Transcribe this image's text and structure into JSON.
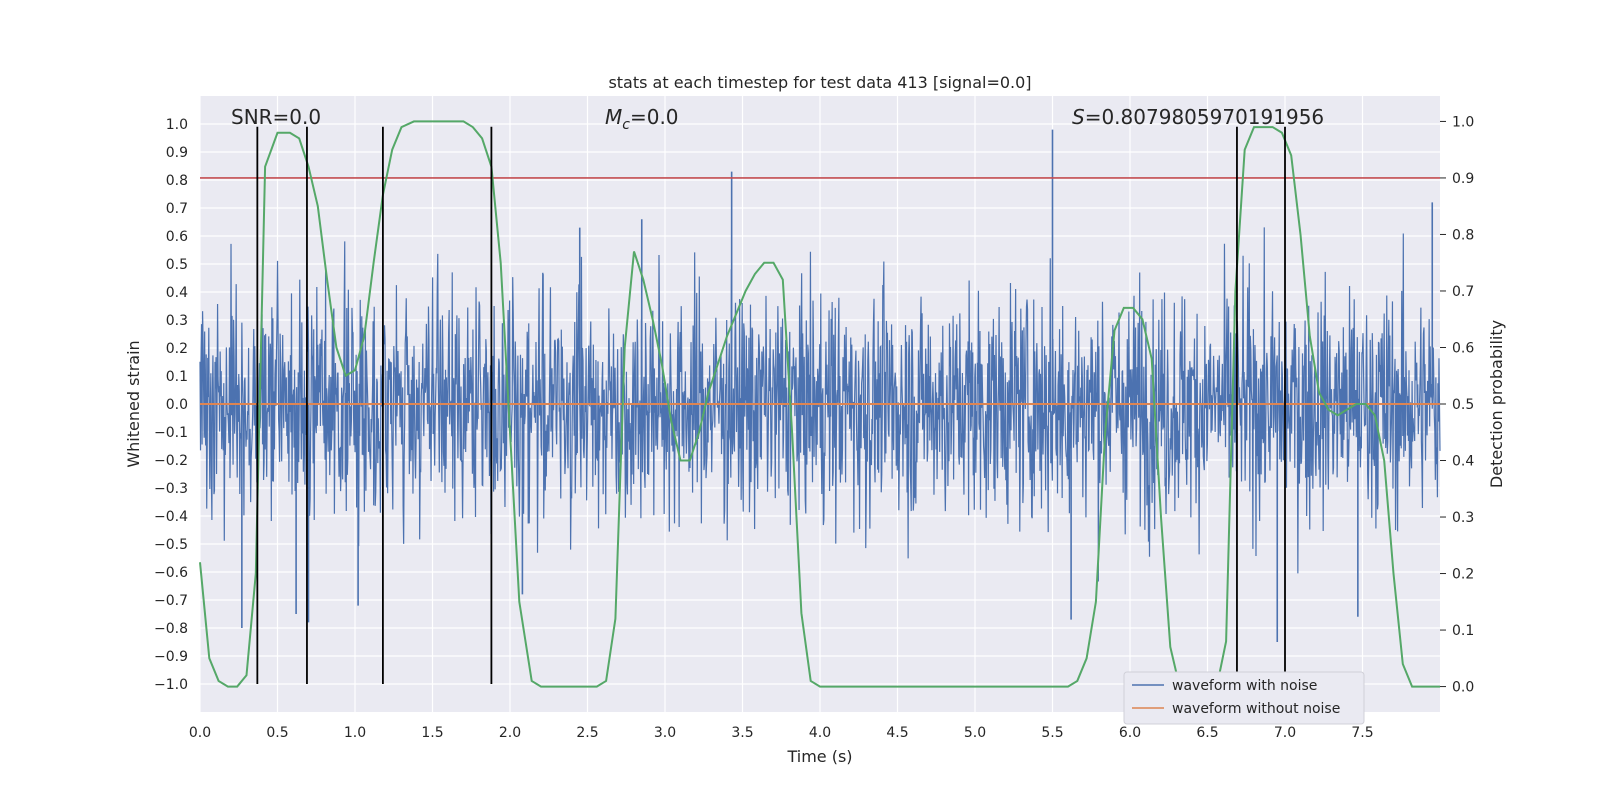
{
  "chart_data": {
    "type": "line",
    "title": "stats at each timestep for test data 413 [signal=0.0]",
    "xlabel": "Time (s)",
    "ylabel": "Whitened strain",
    "y2label": "Detection probability",
    "xlim": [
      0.0,
      8.0
    ],
    "ylim": [
      -1.1,
      1.1
    ],
    "y2lim": [
      -0.045,
      1.045
    ],
    "xticks": [
      0.0,
      0.5,
      1.0,
      1.5,
      2.0,
      2.5,
      3.0,
      3.5,
      4.0,
      4.5,
      5.0,
      5.5,
      6.0,
      6.5,
      7.0,
      7.5
    ],
    "yticks": [
      -1.0,
      -0.9,
      -0.8,
      -0.7,
      -0.6,
      -0.5,
      -0.4,
      -0.3,
      -0.2,
      -0.1,
      0.0,
      0.1,
      0.2,
      0.3,
      0.4,
      0.5,
      0.6,
      0.7,
      0.8,
      0.9,
      1.0
    ],
    "y2ticks": [
      0.0,
      0.1,
      0.2,
      0.3,
      0.4,
      0.5,
      0.6,
      0.7,
      0.8,
      0.9,
      1.0
    ],
    "grid": true,
    "legend_position": "bottom-right",
    "annotations": {
      "snr": "SNR=0.0",
      "mc_symbol": "M",
      "mc_subscript": "c",
      "mc_value": "=0.0",
      "s_symbol": "S",
      "s_value": "=0.8079805970191956"
    },
    "threshold_y2": 0.9,
    "vertical_lines_x": [
      0.37,
      0.69,
      1.18,
      1.88,
      6.69,
      7.0
    ],
    "vertical_lines_ylim": [
      -1.0,
      0.99
    ],
    "noise_series": {
      "name": "waveform with noise",
      "color": "#4c72b0",
      "spikes": [
        {
          "x": 0.27,
          "y": -0.8
        },
        {
          "x": 0.62,
          "y": -0.75
        },
        {
          "x": 0.7,
          "y": -0.78
        },
        {
          "x": 1.02,
          "y": -0.72
        },
        {
          "x": 2.08,
          "y": -0.68
        },
        {
          "x": 2.45,
          "y": 0.63
        },
        {
          "x": 2.85,
          "y": 0.66
        },
        {
          "x": 3.43,
          "y": 0.83
        },
        {
          "x": 5.5,
          "y": 0.98
        },
        {
          "x": 5.62,
          "y": -0.77
        },
        {
          "x": 7.47,
          "y": -0.76
        },
        {
          "x": 7.95,
          "y": 0.72
        },
        {
          "x": 6.95,
          "y": -0.85
        }
      ]
    },
    "clean_series": {
      "name": "waveform without noise",
      "color": "#dd8452",
      "y": 0.0
    },
    "probability_series": {
      "name": "Detection probability",
      "color": "#55a868",
      "x": [
        0.0,
        0.06,
        0.12,
        0.18,
        0.24,
        0.3,
        0.36,
        0.42,
        0.5,
        0.58,
        0.64,
        0.7,
        0.76,
        0.82,
        0.88,
        0.94,
        1.0,
        1.06,
        1.12,
        1.18,
        1.24,
        1.3,
        1.38,
        1.46,
        1.54,
        1.62,
        1.7,
        1.76,
        1.82,
        1.88,
        1.94,
        2.0,
        2.06,
        2.14,
        2.2,
        2.3,
        2.4,
        2.5,
        2.56,
        2.62,
        2.68,
        2.74,
        2.8,
        2.86,
        2.92,
        2.98,
        3.04,
        3.1,
        3.16,
        3.22,
        3.28,
        3.34,
        3.4,
        3.46,
        3.52,
        3.58,
        3.64,
        3.7,
        3.76,
        3.82,
        3.88,
        3.94,
        4.0,
        4.5,
        5.0,
        5.5,
        5.6,
        5.66,
        5.72,
        5.78,
        5.84,
        5.9,
        5.96,
        6.02,
        6.08,
        6.14,
        6.2,
        6.26,
        6.32,
        6.38,
        6.44,
        6.5,
        6.56,
        6.62,
        6.68,
        6.74,
        6.8,
        6.86,
        6.92,
        6.98,
        7.04,
        7.1,
        7.16,
        7.22,
        7.28,
        7.34,
        7.4,
        7.46,
        7.52,
        7.58,
        7.64,
        7.7,
        7.76,
        7.82,
        7.88,
        7.94,
        8.0
      ],
      "y": [
        0.22,
        0.05,
        0.01,
        0.0,
        0.0,
        0.02,
        0.2,
        0.92,
        0.98,
        0.98,
        0.97,
        0.92,
        0.85,
        0.72,
        0.6,
        0.55,
        0.56,
        0.62,
        0.75,
        0.87,
        0.95,
        0.99,
        1.0,
        1.0,
        1.0,
        1.0,
        1.0,
        0.99,
        0.97,
        0.92,
        0.75,
        0.45,
        0.15,
        0.01,
        0.0,
        0.0,
        0.0,
        0.0,
        0.0,
        0.01,
        0.12,
        0.6,
        0.77,
        0.72,
        0.65,
        0.57,
        0.47,
        0.4,
        0.4,
        0.45,
        0.52,
        0.57,
        0.62,
        0.66,
        0.7,
        0.73,
        0.75,
        0.75,
        0.72,
        0.45,
        0.13,
        0.01,
        0.0,
        0.0,
        0.0,
        0.0,
        0.0,
        0.01,
        0.05,
        0.15,
        0.45,
        0.63,
        0.67,
        0.67,
        0.65,
        0.58,
        0.3,
        0.07,
        0.0,
        0.0,
        0.0,
        0.0,
        0.0,
        0.08,
        0.7,
        0.95,
        0.99,
        0.99,
        0.99,
        0.98,
        0.94,
        0.8,
        0.62,
        0.52,
        0.49,
        0.48,
        0.49,
        0.5,
        0.5,
        0.48,
        0.4,
        0.2,
        0.04,
        0.0,
        0.0,
        0.0,
        0.0
      ]
    }
  }
}
